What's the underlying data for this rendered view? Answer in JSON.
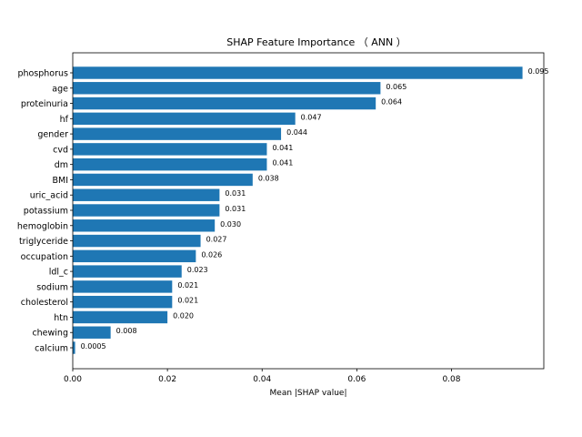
{
  "chart_data": {
    "type": "bar",
    "orientation": "horizontal",
    "title": "SHAP Feature Importance （ ANN ）",
    "xlabel": "Mean |SHAP value|",
    "ylabel": "",
    "xlim": [
      0,
      0.0995
    ],
    "xticks": [
      "0.00",
      "0.02",
      "0.04",
      "0.06",
      "0.08"
    ],
    "grid": false,
    "bar_color": "#1f77b4",
    "categories": [
      "phosphorus",
      "age",
      "proteinuria",
      "hf",
      "gender",
      "cvd",
      "dm",
      "BMI",
      "uric_acid",
      "potassium",
      "hemoglobin",
      "triglyceride",
      "occupation",
      "ldl_c",
      "sodium",
      "cholesterol",
      "htn",
      "chewing",
      "calcium"
    ],
    "values": [
      0.095,
      0.065,
      0.064,
      0.047,
      0.044,
      0.041,
      0.041,
      0.038,
      0.031,
      0.031,
      0.03,
      0.027,
      0.026,
      0.023,
      0.021,
      0.021,
      0.02,
      0.008,
      0.0005
    ],
    "value_labels": [
      "0.095",
      "0.065",
      "0.064",
      "0.047",
      "0.044",
      "0.041",
      "0.041",
      "0.038",
      "0.031",
      "0.031",
      "0.030",
      "0.027",
      "0.026",
      "0.023",
      "0.021",
      "0.021",
      "0.020",
      "0.008",
      "0.0005"
    ]
  }
}
